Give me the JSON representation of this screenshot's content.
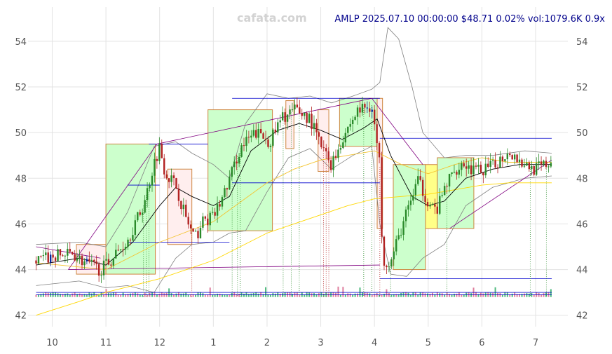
{
  "watermark": "cafata.com",
  "title": "AMLP 2025.07.10 00:00:00 $48.71 0.02% vol:1079.6K 0.9x",
  "chart_data": {
    "type": "candlestick",
    "symbol": "AMLP",
    "ylim": [
      41.5,
      55.5
    ],
    "xlim": [
      -0.45,
      9.6
    ],
    "y_ticks": [
      42,
      44,
      46,
      48,
      50,
      52,
      54
    ],
    "x_ticks": [
      {
        "label": "10",
        "x": 0
      },
      {
        "label": "11",
        "x": 1
      },
      {
        "label": "12",
        "x": 2
      },
      {
        "label": "1",
        "x": 3
      },
      {
        "label": "2",
        "x": 4
      },
      {
        "label": "3",
        "x": 5
      },
      {
        "label": "4",
        "x": 6
      },
      {
        "label": "5",
        "x": 7
      },
      {
        "label": "6",
        "x": 8
      },
      {
        "label": "7",
        "x": 9
      }
    ],
    "grid": true,
    "colors": {
      "up": "#2a8a2a",
      "down": "#b22222",
      "mark": "#0a28a0",
      "sma_short": "#000000",
      "sma_long": "#ffd700",
      "band": "#808080",
      "trend": "#800080",
      "level": "#0000cd",
      "zone_up_fill": "#ccffcc",
      "zone_down_fill": "#ffeeee",
      "zone_yellow_fill": "#ffff88",
      "zone_stroke": "#cd853f"
    },
    "price_path": [
      [
        -0.3,
        44.4
      ],
      [
        0.1,
        44.6
      ],
      [
        0.4,
        44.7
      ],
      [
        0.6,
        44.3
      ],
      [
        0.9,
        44.0
      ],
      [
        1.05,
        44.3
      ],
      [
        1.4,
        45.3
      ],
      [
        1.7,
        46.8
      ],
      [
        1.9,
        48.7
      ],
      [
        2.0,
        49.4
      ],
      [
        2.1,
        48.3
      ],
      [
        2.3,
        47.7
      ],
      [
        2.5,
        46.2
      ],
      [
        2.65,
        45.3
      ],
      [
        2.8,
        46.1
      ],
      [
        3.0,
        46.3
      ],
      [
        3.2,
        47.3
      ],
      [
        3.5,
        49.3
      ],
      [
        3.8,
        50.0
      ],
      [
        4.05,
        49.6
      ],
      [
        4.3,
        50.7
      ],
      [
        4.55,
        51.0
      ],
      [
        4.8,
        50.6
      ],
      [
        5.0,
        49.4
      ],
      [
        5.2,
        48.6
      ],
      [
        5.45,
        50.0
      ],
      [
        5.7,
        51.0
      ],
      [
        5.95,
        51.2
      ],
      [
        6.1,
        48.5
      ],
      [
        6.15,
        44.5
      ],
      [
        6.3,
        44.3
      ],
      [
        6.5,
        45.8
      ],
      [
        6.8,
        47.9
      ],
      [
        7.0,
        47.0
      ],
      [
        7.15,
        46.5
      ],
      [
        7.35,
        47.8
      ],
      [
        7.6,
        48.7
      ],
      [
        7.9,
        48.3
      ],
      [
        8.2,
        48.5
      ],
      [
        8.5,
        49.2
      ],
      [
        8.8,
        48.6
      ],
      [
        9.0,
        48.4
      ],
      [
        9.3,
        48.7
      ]
    ],
    "moving_average_short": [
      [
        -0.3,
        44.2
      ],
      [
        0.5,
        44.5
      ],
      [
        1.0,
        44.2
      ],
      [
        1.5,
        45.2
      ],
      [
        2.0,
        46.8
      ],
      [
        2.3,
        47.6
      ],
      [
        2.6,
        47.2
      ],
      [
        3.0,
        46.8
      ],
      [
        3.3,
        47.2
      ],
      [
        3.7,
        49.2
      ],
      [
        4.2,
        50.1
      ],
      [
        4.6,
        50.4
      ],
      [
        5.0,
        50.1
      ],
      [
        5.4,
        49.7
      ],
      [
        5.8,
        50.2
      ],
      [
        6.05,
        50.6
      ],
      [
        6.3,
        49.0
      ],
      [
        6.7,
        47.2
      ],
      [
        7.0,
        46.8
      ],
      [
        7.3,
        47.0
      ],
      [
        7.7,
        48.0
      ],
      [
        8.2,
        48.4
      ],
      [
        8.7,
        48.6
      ],
      [
        9.3,
        48.6
      ]
    ],
    "moving_average_long": [
      [
        -0.3,
        42.0
      ],
      [
        0.5,
        42.6
      ],
      [
        1.0,
        43.0
      ],
      [
        1.5,
        43.3
      ],
      [
        2.0,
        43.6
      ],
      [
        2.5,
        44.0
      ],
      [
        3.0,
        44.4
      ],
      [
        3.5,
        45.0
      ],
      [
        4.0,
        45.6
      ],
      [
        4.5,
        46.0
      ],
      [
        5.0,
        46.4
      ],
      [
        5.5,
        46.8
      ],
      [
        6.0,
        47.1
      ],
      [
        6.5,
        47.2
      ],
      [
        7.0,
        47.3
      ],
      [
        7.5,
        47.5
      ],
      [
        8.0,
        47.7
      ],
      [
        8.5,
        47.8
      ],
      [
        9.3,
        47.8
      ]
    ],
    "moving_average_mid": [
      [
        -0.3,
        44.3
      ],
      [
        1.0,
        44.0
      ],
      [
        2.0,
        45.2
      ],
      [
        3.0,
        46.1
      ],
      [
        4.0,
        47.8
      ],
      [
        4.5,
        48.4
      ],
      [
        5.0,
        48.8
      ],
      [
        5.5,
        49.0
      ],
      [
        6.0,
        49.2
      ],
      [
        6.5,
        48.6
      ],
      [
        7.0,
        48.2
      ],
      [
        7.5,
        48.6
      ],
      [
        8.0,
        48.9
      ],
      [
        8.5,
        48.7
      ],
      [
        9.3,
        48.7
      ]
    ],
    "band_upper": [
      [
        -0.3,
        45.1
      ],
      [
        0.5,
        45.2
      ],
      [
        1.0,
        45.0
      ],
      [
        1.4,
        46.5
      ],
      [
        1.9,
        49.4
      ],
      [
        2.3,
        49.6
      ],
      [
        2.6,
        49.1
      ],
      [
        3.0,
        48.6
      ],
      [
        3.3,
        48.0
      ],
      [
        3.6,
        50.4
      ],
      [
        4.0,
        51.7
      ],
      [
        4.4,
        51.5
      ],
      [
        4.8,
        51.6
      ],
      [
        5.2,
        51.3
      ],
      [
        5.6,
        51.6
      ],
      [
        5.95,
        51.9
      ],
      [
        6.1,
        52.2
      ],
      [
        6.25,
        54.6
      ],
      [
        6.45,
        54.1
      ],
      [
        6.7,
        52.0
      ],
      [
        6.9,
        50.0
      ],
      [
        7.3,
        48.9
      ],
      [
        7.7,
        49.0
      ],
      [
        8.2,
        49.0
      ],
      [
        8.8,
        49.2
      ],
      [
        9.3,
        49.1
      ]
    ],
    "band_lower": [
      [
        -0.3,
        43.3
      ],
      [
        0.5,
        43.5
      ],
      [
        1.0,
        43.2
      ],
      [
        1.4,
        43.3
      ],
      [
        1.9,
        43.0
      ],
      [
        2.3,
        44.5
      ],
      [
        2.6,
        45.1
      ],
      [
        3.0,
        45.2
      ],
      [
        3.3,
        45.6
      ],
      [
        3.6,
        45.7
      ],
      [
        4.0,
        47.4
      ],
      [
        4.4,
        48.9
      ],
      [
        4.8,
        49.3
      ],
      [
        5.2,
        48.4
      ],
      [
        5.6,
        49.0
      ],
      [
        5.95,
        49.4
      ],
      [
        6.1,
        46.0
      ],
      [
        6.3,
        43.8
      ],
      [
        6.6,
        43.7
      ],
      [
        6.9,
        44.5
      ],
      [
        7.3,
        45.1
      ],
      [
        7.7,
        46.8
      ],
      [
        8.2,
        47.6
      ],
      [
        8.8,
        48.0
      ],
      [
        9.3,
        48.1
      ]
    ],
    "zones": [
      {
        "x0": 0.45,
        "x1": 1.0,
        "y0": 43.8,
        "y1": 45.1,
        "kind": "down"
      },
      {
        "x0": 1.0,
        "x1": 1.92,
        "y0": 43.8,
        "y1": 49.5,
        "kind": "up"
      },
      {
        "x0": 2.15,
        "x1": 2.6,
        "y0": 45.1,
        "y1": 48.4,
        "kind": "down"
      },
      {
        "x0": 2.9,
        "x1": 4.1,
        "y0": 45.7,
        "y1": 51.0,
        "kind": "up"
      },
      {
        "x0": 4.35,
        "x1": 4.5,
        "y0": 49.3,
        "y1": 51.4,
        "kind": "down"
      },
      {
        "x0": 4.95,
        "x1": 5.15,
        "y0": 48.3,
        "y1": 51.0,
        "kind": "down"
      },
      {
        "x0": 5.35,
        "x1": 6.05,
        "y0": 49.4,
        "y1": 51.5,
        "kind": "up"
      },
      {
        "x0": 6.05,
        "x1": 6.15,
        "y0": 45.8,
        "y1": 51.5,
        "kind": "down"
      },
      {
        "x0": 6.35,
        "x1": 6.95,
        "y0": 44.0,
        "y1": 48.6,
        "kind": "up"
      },
      {
        "x0": 6.95,
        "x1": 7.17,
        "y0": 45.8,
        "y1": 48.6,
        "kind": "yellow"
      },
      {
        "x0": 7.17,
        "x1": 7.85,
        "y0": 45.8,
        "y1": 48.9,
        "kind": "up"
      }
    ],
    "levels": [
      {
        "x0": 1.8,
        "x1": 2.9,
        "y": 49.5
      },
      {
        "x0": 1.4,
        "x1": 2.0,
        "y": 47.7
      },
      {
        "x0": 1.4,
        "x1": 3.3,
        "y": 45.2
      },
      {
        "x0": 3.35,
        "x1": 6.1,
        "y": 51.5
      },
      {
        "x0": 3.35,
        "x1": 6.1,
        "y": 47.8
      },
      {
        "x0": 6.1,
        "x1": 9.3,
        "y": 49.75
      },
      {
        "x0": 6.1,
        "x1": 9.3,
        "y": 43.6
      },
      {
        "x0": -0.3,
        "x1": 9.3,
        "y": 43.0
      },
      {
        "x0": -0.3,
        "x1": 9.3,
        "y": 42.9
      }
    ],
    "trend_lines": [
      {
        "x0": 0.3,
        "y0": 44.0,
        "x1": 1.95,
        "y1": 49.5
      },
      {
        "x0": 1.95,
        "y0": 49.5,
        "x1": 5.95,
        "y1": 51.5
      },
      {
        "x0": 5.95,
        "y0": 51.5,
        "x1": 6.9,
        "y1": 48.6
      },
      {
        "x0": -0.3,
        "y0": 45.0,
        "x1": 0.9,
        "y1": 44.5
      },
      {
        "x0": 0.3,
        "y0": 44.0,
        "x1": 6.1,
        "y1": 44.2
      },
      {
        "x0": 7.4,
        "y0": 45.8,
        "x1": 9.3,
        "y1": 48.8
      }
    ],
    "event_markers": [
      {
        "x": 1.7,
        "color": "#2a8a2a"
      },
      {
        "x": 1.75,
        "color": "#2a8a2a"
      },
      {
        "x": 1.8,
        "color": "#2a8a2a"
      },
      {
        "x": 2.6,
        "color": "#b22222"
      },
      {
        "x": 3.35,
        "color": "#2a8a2a"
      },
      {
        "x": 3.45,
        "color": "#2a8a2a"
      },
      {
        "x": 3.5,
        "color": "#2a8a2a"
      },
      {
        "x": 4.3,
        "color": "#2a8a2a"
      },
      {
        "x": 4.45,
        "color": "#2a8a2a"
      },
      {
        "x": 4.6,
        "color": "#2a8a2a"
      },
      {
        "x": 5.05,
        "color": "#b22222"
      },
      {
        "x": 5.1,
        "color": "#b22222"
      },
      {
        "x": 5.15,
        "color": "#b22222"
      },
      {
        "x": 5.8,
        "color": "#2a8a2a"
      },
      {
        "x": 5.95,
        "color": "#2a8a2a"
      },
      {
        "x": 6.1,
        "color": "#b22222"
      },
      {
        "x": 6.3,
        "color": "#2a8a2a"
      },
      {
        "x": 7.35,
        "color": "#2a8a2a"
      },
      {
        "x": 8.9,
        "color": "#2a8a2a"
      },
      {
        "x": 9.2,
        "color": "#2a8a2a"
      }
    ]
  }
}
